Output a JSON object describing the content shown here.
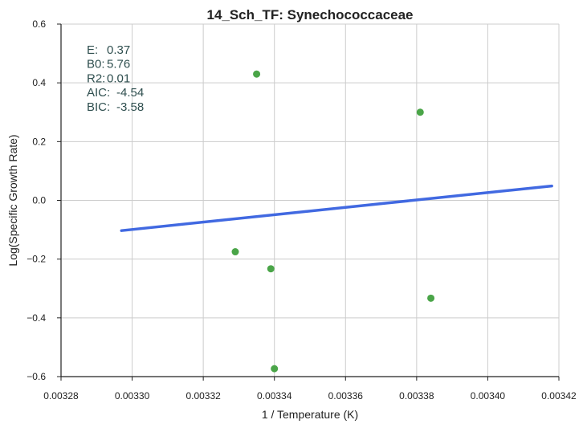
{
  "chart_data": {
    "type": "scatter",
    "title": "14_Sch_TF: Synechococcaceae",
    "xlabel": "1 / Temperature (K)",
    "ylabel": "Log(Specific Growth Rate)",
    "xlim": [
      0.00328,
      0.00342
    ],
    "ylim": [
      -0.6,
      0.6
    ],
    "x_ticks": [
      "0.00328",
      "0.00330",
      "0.00332",
      "0.00334",
      "0.00336",
      "0.00338",
      "0.00340",
      "0.00342"
    ],
    "y_ticks": [
      "0.6",
      "0.4",
      "0.2",
      "0.0",
      "−0.2",
      "−0.4",
      "−0.6"
    ],
    "grid": true,
    "series": [
      {
        "type": "scatter",
        "color": "#4aa548",
        "points": [
          {
            "x": 0.003335,
            "y": 0.43
          },
          {
            "x": 0.003381,
            "y": 0.3
          },
          {
            "x": 0.003329,
            "y": -0.175
          },
          {
            "x": 0.003339,
            "y": -0.233
          },
          {
            "x": 0.003384,
            "y": -0.333
          },
          {
            "x": 0.00334,
            "y": -0.573
          }
        ]
      },
      {
        "type": "line",
        "color": "#4169e1",
        "points": [
          {
            "x": 0.003297,
            "y": -0.103
          },
          {
            "x": 0.003418,
            "y": 0.049
          }
        ]
      }
    ],
    "annotations": [
      {
        "label": "E:",
        "value": "0.37"
      },
      {
        "label": "B0:",
        "value": "5.76"
      },
      {
        "label": "R2:",
        "value": "0.01"
      },
      {
        "label": "AIC:",
        "value": "-4.54"
      },
      {
        "label": "BIC:",
        "value": "-3.58"
      }
    ]
  }
}
